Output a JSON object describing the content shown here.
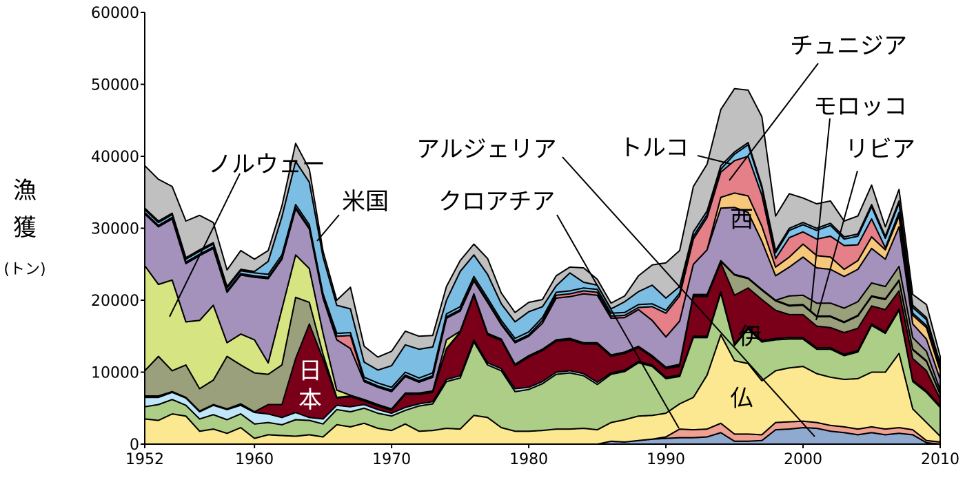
{
  "chart_data": {
    "type": "area",
    "stacked": true,
    "ylabel_lines": [
      "漁",
      "獲"
    ],
    "ylabel_unit": "(トン)",
    "ylim": [
      0,
      60000
    ],
    "yticks": [
      0,
      10000,
      20000,
      30000,
      40000,
      50000,
      60000
    ],
    "xlim": [
      1952,
      2010
    ],
    "xticks": [
      1952,
      1960,
      1970,
      1980,
      1990,
      2000,
      2010
    ],
    "x": [
      1952,
      1953,
      1954,
      1955,
      1956,
      1957,
      1958,
      1959,
      1960,
      1961,
      1962,
      1963,
      1964,
      1965,
      1966,
      1967,
      1968,
      1969,
      1970,
      1971,
      1972,
      1973,
      1974,
      1975,
      1976,
      1977,
      1978,
      1979,
      1980,
      1981,
      1982,
      1983,
      1984,
      1985,
      1986,
      1987,
      1988,
      1989,
      1990,
      1991,
      1992,
      1993,
      1994,
      1995,
      1996,
      1997,
      1998,
      1999,
      2000,
      2001,
      2002,
      2003,
      2004,
      2005,
      2006,
      2007,
      2008,
      2009,
      2010
    ],
    "series": [
      {
        "key": "other_bottom",
        "color": "#8fa9cf",
        "values": [
          0,
          0,
          0,
          0,
          0,
          0,
          0,
          0,
          0,
          0,
          0,
          0,
          0,
          0,
          0,
          0,
          0,
          0,
          0,
          0,
          0,
          0,
          0,
          0,
          0,
          0,
          0,
          0,
          0,
          0,
          0,
          0,
          0,
          0,
          400,
          300,
          500,
          700,
          800,
          900,
          900,
          1000,
          1600,
          400,
          400,
          500,
          2000,
          2100,
          2300,
          2200,
          1800,
          1600,
          1300,
          1600,
          1300,
          1500,
          1300,
          200,
          0
        ]
      },
      {
        "key": "salmon_bottom",
        "color": "#f0a090",
        "values": [
          0,
          0,
          0,
          0,
          0,
          0,
          0,
          0,
          0,
          0,
          0,
          0,
          0,
          0,
          0,
          0,
          0,
          0,
          0,
          0,
          0,
          0,
          0,
          0,
          0,
          0,
          0,
          0,
          0,
          0,
          0,
          0,
          0,
          0,
          0,
          0,
          0,
          0,
          200,
          1200,
          1100,
          1100,
          1300,
          1000,
          1000,
          800,
          1000,
          1000,
          900,
          800,
          800,
          800,
          800,
          800,
          800,
          800,
          700,
          300,
          300
        ]
      },
      {
        "key": "france_bottom",
        "color": "#fde892",
        "values": [
          3500,
          3300,
          4200,
          3900,
          1800,
          2100,
          1500,
          2300,
          800,
          1300,
          1200,
          1100,
          1300,
          1000,
          2700,
          2400,
          2900,
          2200,
          1900,
          2800,
          1800,
          1900,
          2200,
          2100,
          4000,
          3700,
          2300,
          1800,
          1800,
          1900,
          2100,
          2100,
          2200,
          2000,
          2600,
          3100,
          3400,
          3300,
          3300,
          3500,
          4500,
          7500,
          12300,
          10200,
          9800,
          7500,
          7200,
          7500,
          7600,
          6800,
          6700,
          6600,
          7000,
          7600,
          7900,
          10300,
          2900,
          2500,
          800
        ]
      },
      {
        "key": "italy_low",
        "color": "#acce86",
        "values": [
          1700,
          2200,
          2000,
          1500,
          1700,
          2000,
          1900,
          1900,
          2000,
          1700,
          1500,
          2300,
          2000,
          1800,
          2100,
          2100,
          2100,
          2100,
          2000,
          1900,
          3500,
          3700,
          6500,
          7100,
          10200,
          7300,
          7900,
          5500,
          5800,
          6500,
          7600,
          7800,
          7300,
          6300,
          6700,
          6700,
          7400,
          6800,
          4800,
          3800,
          8300,
          5200,
          5800,
          2100,
          4800,
          5400,
          4300,
          4000,
          3800,
          3400,
          3900,
          3300,
          3700,
          6500,
          5400,
          6000,
          3800,
          4200,
          4000
        ]
      },
      {
        "key": "lightblue_low",
        "color": "#bfe6f9",
        "values": [
          1300,
          1000,
          1000,
          1000,
          1000,
          1300,
          1400,
          1200,
          1600,
          1200,
          1000,
          1000,
          400,
          700,
          600,
          700,
          500,
          500,
          400,
          400,
          300,
          300,
          300,
          300,
          300,
          300,
          300,
          400,
          300,
          300,
          300,
          300,
          300,
          300,
          200,
          200,
          200,
          200,
          200,
          200,
          200,
          200,
          200,
          200,
          200,
          200,
          200,
          200,
          200,
          200,
          200,
          200,
          200,
          200,
          200,
          200,
          200,
          200,
          200
        ]
      },
      {
        "key": "japan",
        "color": "#7a0019",
        "values": [
          200,
          200,
          100,
          100,
          100,
          100,
          100,
          200,
          100,
          1300,
          1800,
          7500,
          13000,
          8300,
          1000,
          1400,
          500,
          500,
          400,
          1800,
          1300,
          1300,
          4200,
          6000,
          6200,
          3900,
          3900,
          3200,
          4200,
          4300,
          4300,
          4300,
          4100,
          5300,
          2300,
          2300,
          1900,
          1100,
          1200,
          1200,
          5500,
          5500,
          4000,
          6800,
          5500,
          5700,
          3900,
          3200,
          3200,
          3000,
          2800,
          3000,
          3100,
          2500,
          3100,
          2500,
          3000,
          2800,
          1000
        ]
      },
      {
        "key": "olive_green",
        "color": "#9aa07c",
        "values": [
          3500,
          5500,
          2900,
          4500,
          3100,
          3400,
          7300,
          5400,
          5400,
          4200,
          5500,
          8500,
          3000,
          700,
          100,
          100,
          100,
          100,
          100,
          100,
          100,
          100,
          100,
          100,
          100,
          100,
          100,
          100,
          100,
          100,
          100,
          100,
          100,
          100,
          100,
          100,
          100,
          100,
          100,
          200,
          200,
          200,
          200,
          2800,
          1300,
          1300,
          1300,
          1200,
          1300,
          1300,
          1500,
          1400,
          1700,
          1300,
          1400,
          1400,
          1200,
          1300,
          600
        ]
      },
      {
        "key": "norway",
        "color": "#d6e582",
        "values": [
          14600,
          10000,
          12600,
          6000,
          9500,
          10400,
          1900,
          4300,
          4600,
          1600,
          7800,
          5900,
          4700,
          2900,
          1000,
          100,
          100,
          100,
          100,
          100,
          100,
          100,
          1200,
          100,
          100,
          100,
          100,
          100,
          100,
          100,
          100,
          100,
          100,
          100,
          100,
          100,
          100,
          100,
          100,
          100,
          100,
          100,
          100,
          100,
          100,
          100,
          100,
          100,
          100,
          100,
          100,
          100,
          100,
          100,
          100,
          100,
          100,
          100,
          100
        ]
      },
      {
        "key": "olive_mid",
        "color": "#9aa07c",
        "values": [
          0,
          0,
          0,
          0,
          0,
          0,
          0,
          0,
          0,
          0,
          0,
          0,
          0,
          0,
          0,
          0,
          0,
          0,
          0,
          0,
          0,
          0,
          0,
          0,
          0,
          0,
          0,
          0,
          0,
          0,
          0,
          0,
          0,
          0,
          0,
          0,
          0,
          0,
          0,
          0,
          0,
          0,
          0,
          0,
          0,
          0,
          0,
          1300,
          1300,
          1800,
          1800,
          1900,
          1900,
          1800,
          1700,
          1900,
          1600,
          1300,
          500
        ]
      },
      {
        "key": "spain",
        "color": "#a492bd",
        "values": [
          7200,
          8000,
          8500,
          8100,
          9000,
          7900,
          7000,
          8200,
          8700,
          11700,
          6900,
          6400,
          5500,
          4900,
          7000,
          6500,
          2500,
          2400,
          2400,
          2300,
          1500,
          1900,
          3000,
          2800,
          1800,
          4300,
          2000,
          3000,
          2700,
          3600,
          5800,
          5800,
          6800,
          6600,
          5100,
          4800,
          5100,
          4900,
          4200,
          6000,
          4200,
          6200,
          7300,
          9300,
          9100,
          6700,
          3400,
          4000,
          5300,
          4900,
          4700,
          4400,
          4500,
          4800,
          3800,
          5500,
          1900,
          1700,
          1500
        ]
      },
      {
        "key": "orange",
        "color": "#f7c87c",
        "values": [
          0,
          0,
          0,
          0,
          0,
          0,
          0,
          0,
          0,
          0,
          0,
          0,
          0,
          0,
          0,
          0,
          0,
          0,
          0,
          0,
          0,
          0,
          0,
          0,
          0,
          0,
          0,
          0,
          0,
          0,
          0,
          0,
          0,
          0,
          0,
          0,
          0,
          0,
          0,
          0,
          0,
          0,
          1500,
          2000,
          2300,
          2100,
          1200,
          1400,
          1800,
          1700,
          1700,
          1000,
          1200,
          1600,
          1300,
          1500,
          1200,
          1600,
          1200
        ]
      },
      {
        "key": "turkey",
        "color": "#e57f88",
        "values": [
          200,
          200,
          200,
          200,
          200,
          200,
          200,
          200,
          200,
          200,
          200,
          200,
          200,
          200,
          500,
          1800,
          200,
          200,
          200,
          200,
          200,
          200,
          200,
          200,
          200,
          200,
          200,
          200,
          200,
          400,
          400,
          400,
          400,
          400,
          300,
          300,
          300,
          1900,
          3300,
          3500,
          3500,
          4500,
          3500,
          4500,
          5500,
          4300,
          1200,
          2700,
          1700,
          2300,
          2900,
          3300,
          2200,
          2500,
          300,
          500,
          300,
          300,
          300
        ]
      },
      {
        "key": "tunisia",
        "color": "#7ec3ec",
        "values": [
          400,
          400,
          400,
          400,
          400,
          400,
          400,
          400,
          400,
          400,
          400,
          400,
          400,
          400,
          400,
          400,
          400,
          400,
          400,
          400,
          400,
          400,
          400,
          400,
          400,
          400,
          400,
          400,
          400,
          400,
          400,
          400,
          400,
          400,
          400,
          400,
          400,
          400,
          400,
          400,
          400,
          400,
          400,
          900,
          1600,
          1000,
          800,
          1000,
          1000,
          1200,
          1500,
          900,
          1200,
          1700,
          1300,
          1300,
          800,
          800,
          400
        ]
      },
      {
        "key": "usa",
        "color": "#7cbde4",
        "values": [
          200,
          200,
          200,
          200,
          200,
          200,
          200,
          200,
          200,
          1800,
          5300,
          6000,
          5900,
          5100,
          3900,
          3300,
          2100,
          1800,
          3000,
          3800,
          4000,
          3600,
          1900,
          4900,
          3000,
          3300,
          2300,
          2300,
          2800,
          1500,
          900,
          2500,
          800,
          600,
          600,
          1500,
          1800,
          2600,
          1700,
          900,
          600,
          500,
          500,
          300,
          300,
          300,
          300,
          300,
          300,
          300,
          300,
          300,
          300,
          300,
          300,
          300,
          300,
          300,
          300
        ]
      },
      {
        "key": "grey_top",
        "color": "#c0c0c0",
        "values": [
          5900,
          5800,
          3700,
          5100,
          4800,
          2800,
          2300,
          2600,
          1700,
          1500,
          1500,
          2500,
          1800,
          800,
          700,
          3000,
          2200,
          1800,
          2000,
          1900,
          1800,
          1600,
          1900,
          1500,
          1500,
          2200,
          1500,
          1300,
          1300,
          1000,
          1400,
          800,
          2000,
          800,
          800,
          800,
          2200,
          2800,
          4900,
          5000,
          6300,
          6500,
          7800,
          8800,
          7300,
          9600,
          4800,
          4800,
          3400,
          3400,
          3100,
          2200,
          2500,
          2700,
          1300,
          1600,
          1500,
          1800,
          1000
        ]
      }
    ],
    "annotations": [
      "ノルウェー",
      "米国",
      "日本",
      "クロアチア",
      "アルジェリア",
      "トルコ",
      "チュニジア",
      "モロッコ",
      "リビア",
      "西",
      "伊",
      "仏"
    ]
  }
}
